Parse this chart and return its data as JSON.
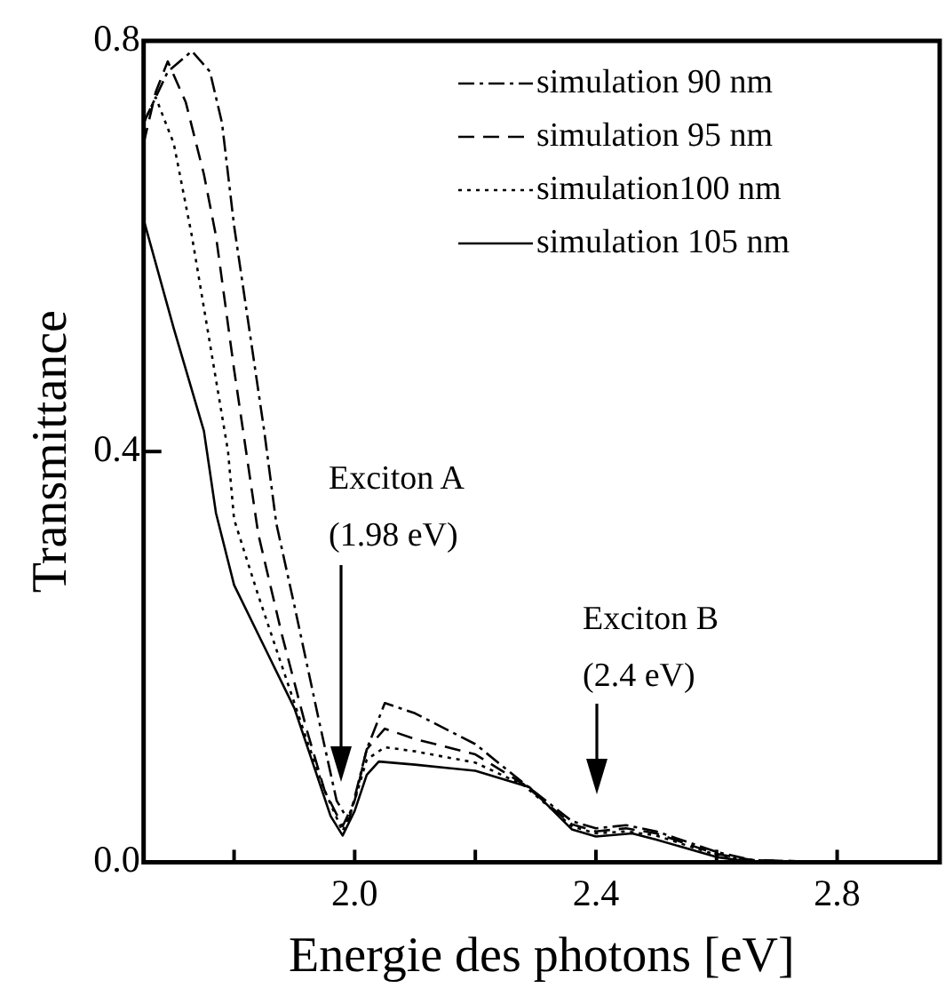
{
  "chart_data": {
    "type": "line",
    "xlabel": "Energie des photons [eV]",
    "ylabel": "Transmittance",
    "xlim": [
      1.65,
      2.97
    ],
    "ylim": [
      0,
      0.8
    ],
    "xticks": [
      {
        "value": 1.8,
        "label": null
      },
      {
        "value": 2,
        "label": "2.0"
      },
      {
        "value": 2.2,
        "label": null
      },
      2.4,
      {
        "value": 2.6,
        "label": null
      },
      2.8
    ],
    "yticks": [
      {
        "value": 0,
        "label": "0.0"
      },
      0.4,
      0.8
    ],
    "grid": false,
    "legend": "top right",
    "marker": "none",
    "series": [
      {
        "name": "simulation 90 nm",
        "color": "#000000",
        "line_style": "dashdot",
        "x": [
          1.65,
          1.69,
          1.73,
          1.76,
          1.78,
          1.8,
          1.85,
          1.87,
          1.9,
          1.94,
          1.97,
          1.99,
          2.02,
          2.05,
          2.1,
          2.2,
          2.28,
          2.36,
          2.4,
          2.45,
          2.5,
          2.6,
          2.66,
          2.8,
          2.97
        ],
        "values": [
          0.72,
          0.77,
          0.79,
          0.77,
          0.72,
          0.62,
          0.42,
          0.33,
          0.25,
          0.14,
          0.06,
          0.04,
          0.11,
          0.155,
          0.145,
          0.115,
          0.077,
          0.04,
          0.033,
          0.036,
          0.03,
          0.01,
          0.002,
          0.0,
          0.0
        ]
      },
      {
        "name": "simulation 95 nm",
        "color": "#000000",
        "line_style": "dashed",
        "x": [
          1.65,
          1.67,
          1.69,
          1.72,
          1.75,
          1.77,
          1.8,
          1.82,
          1.84,
          1.88,
          1.92,
          1.95,
          1.98,
          2.0,
          2.02,
          2.05,
          2.1,
          2.2,
          2.28,
          2.36,
          2.4,
          2.45,
          2.5,
          2.6,
          2.66,
          2.8,
          2.97
        ],
        "values": [
          0.7,
          0.75,
          0.78,
          0.74,
          0.67,
          0.61,
          0.48,
          0.4,
          0.32,
          0.22,
          0.13,
          0.07,
          0.035,
          0.06,
          0.11,
          0.13,
          0.12,
          0.105,
          0.076,
          0.037,
          0.03,
          0.033,
          0.028,
          0.008,
          0.002,
          0.0,
          0.0
        ]
      },
      {
        "name": "simulation100 nm",
        "color": "#000000",
        "line_style": "dotted",
        "x": [
          1.65,
          1.67,
          1.7,
          1.73,
          1.77,
          1.79,
          1.8,
          1.84,
          1.88,
          1.92,
          1.95,
          1.98,
          2.0,
          2.02,
          2.05,
          2.1,
          2.2,
          2.28,
          2.36,
          2.4,
          2.45,
          2.5,
          2.6,
          2.66,
          2.8,
          2.97
        ],
        "values": [
          0.72,
          0.745,
          0.7,
          0.61,
          0.47,
          0.4,
          0.334,
          0.26,
          0.19,
          0.12,
          0.07,
          0.03,
          0.06,
          0.1,
          0.112,
          0.108,
          0.097,
          0.075,
          0.035,
          0.028,
          0.03,
          0.026,
          0.007,
          0.001,
          0.0,
          0.0
        ]
      },
      {
        "name": "simulation 105 nm",
        "color": "#000000",
        "line_style": "solid",
        "x": [
          1.65,
          1.7,
          1.75,
          1.77,
          1.8,
          1.85,
          1.9,
          1.94,
          1.96,
          1.98,
          2.0,
          2.02,
          2.04,
          2.1,
          2.2,
          2.29,
          2.36,
          2.4,
          2.46,
          2.5,
          2.6,
          2.66,
          2.8,
          2.97
        ],
        "values": [
          0.626,
          0.52,
          0.42,
          0.34,
          0.27,
          0.21,
          0.15,
          0.08,
          0.045,
          0.026,
          0.05,
          0.085,
          0.098,
          0.095,
          0.089,
          0.073,
          0.032,
          0.025,
          0.028,
          0.022,
          0.005,
          0.0,
          0.0,
          0.0
        ]
      }
    ],
    "annotations": [
      "Exciton A (1.98 eV)",
      "Exciton B (2.4 eV)"
    ]
  }
}
